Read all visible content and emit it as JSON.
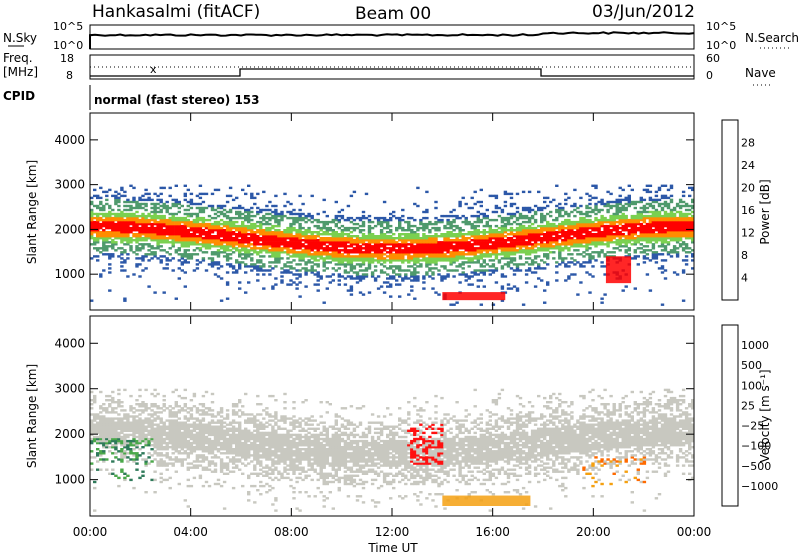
{
  "header": {
    "station": "Hankasalmi (fitACF)",
    "beam": "Beam 00",
    "date": "03/Jun/2012"
  },
  "noise_panel": {
    "left_label": "N.Sky",
    "left_ticks": [
      "10^5",
      "10^0"
    ],
    "right_label": "N.Search",
    "right_ticks": [
      "10^5",
      "10^0"
    ]
  },
  "freq_panel": {
    "left_label_top": "Freq.",
    "left_label_bottom": "[MHz]",
    "left_ticks": [
      "18",
      "8"
    ],
    "right_label": "Nave",
    "right_ticks": [
      "60",
      "0"
    ]
  },
  "cpid": {
    "label": "CPID",
    "mode": "normal (fast stereo) 153"
  },
  "x_axis": {
    "title": "Time UT",
    "ticks": [
      "00:00",
      "04:00",
      "08:00",
      "12:00",
      "16:00",
      "20:00",
      "00:00"
    ]
  },
  "power_colorbar": {
    "title": "Power [dB]",
    "ticks": [
      "28",
      "24",
      "20",
      "16",
      "12",
      "8",
      "4"
    ],
    "colors": [
      "#0000ff",
      "#2c58a8",
      "#4f9a6c",
      "#7ad050",
      "#f4e200",
      "#ff8c00",
      "#ff0000"
    ]
  },
  "velocity_colorbar": {
    "title": "Velocity [m s⁻¹]",
    "ticks": [
      "1000",
      "500",
      "100",
      "25",
      "−25",
      "−100",
      "−500",
      "−1000"
    ],
    "colors": [
      "#2040c0",
      "#2f7a5a",
      "#4aa84a",
      "#8ed85a",
      "#c8c8c0",
      "#f4a010",
      "#ff6a00",
      "#ff1010"
    ]
  },
  "chart_data": [
    {
      "type": "heatmap",
      "title": "",
      "xlabel": "Time UT",
      "ylabel": "Slant Range [km]",
      "xlim": [
        "00:00",
        "24:00"
      ],
      "ylim": [
        200,
        4600
      ],
      "yticks": [
        1000,
        2000,
        3000,
        4000
      ],
      "colorbar": "Power [dB]",
      "clim": [
        0,
        30
      ],
      "features": [
        {
          "name": "main scatter band",
          "x_range": [
            "00:00",
            "24:00"
          ],
          "range_km": [
            1400,
            2300
          ],
          "power_db_peak": 28
        },
        {
          "name": "near-range echoes",
          "x_range": [
            "14:00",
            "16:30"
          ],
          "range_km": [
            420,
            600
          ],
          "power_db_peak": 28
        },
        {
          "name": "evening enhancement",
          "x_range": [
            "20:30",
            "21:30"
          ],
          "range_km": [
            800,
            1400
          ],
          "power_db_peak": 28
        }
      ]
    },
    {
      "type": "heatmap",
      "title": "",
      "xlabel": "Time UT",
      "ylabel": "Slant Range [km]",
      "xlim": [
        "00:00",
        "24:00"
      ],
      "ylim": [
        200,
        4600
      ],
      "yticks": [
        1000,
        2000,
        3000,
        4000
      ],
      "colorbar": "Velocity [m s⁻¹]",
      "clim": [
        -1000,
        1000
      ],
      "features": [
        {
          "name": "positive velocity patch",
          "x_range": [
            "00:00",
            "02:30"
          ],
          "range_km": [
            800,
            1900
          ],
          "velocity": 500
        },
        {
          "name": "strong negative velocity",
          "x_range": [
            "12:30",
            "14:00"
          ],
          "range_km": [
            1300,
            2200
          ],
          "velocity": -1000
        },
        {
          "name": "near-range negative flow",
          "x_range": [
            "14:00",
            "17:30"
          ],
          "range_km": [
            420,
            650
          ],
          "velocity": -100
        },
        {
          "name": "evening negative flow",
          "x_range": [
            "19:30",
            "22:00"
          ],
          "range_km": [
            800,
            1500
          ],
          "velocity": -500
        }
      ]
    }
  ]
}
